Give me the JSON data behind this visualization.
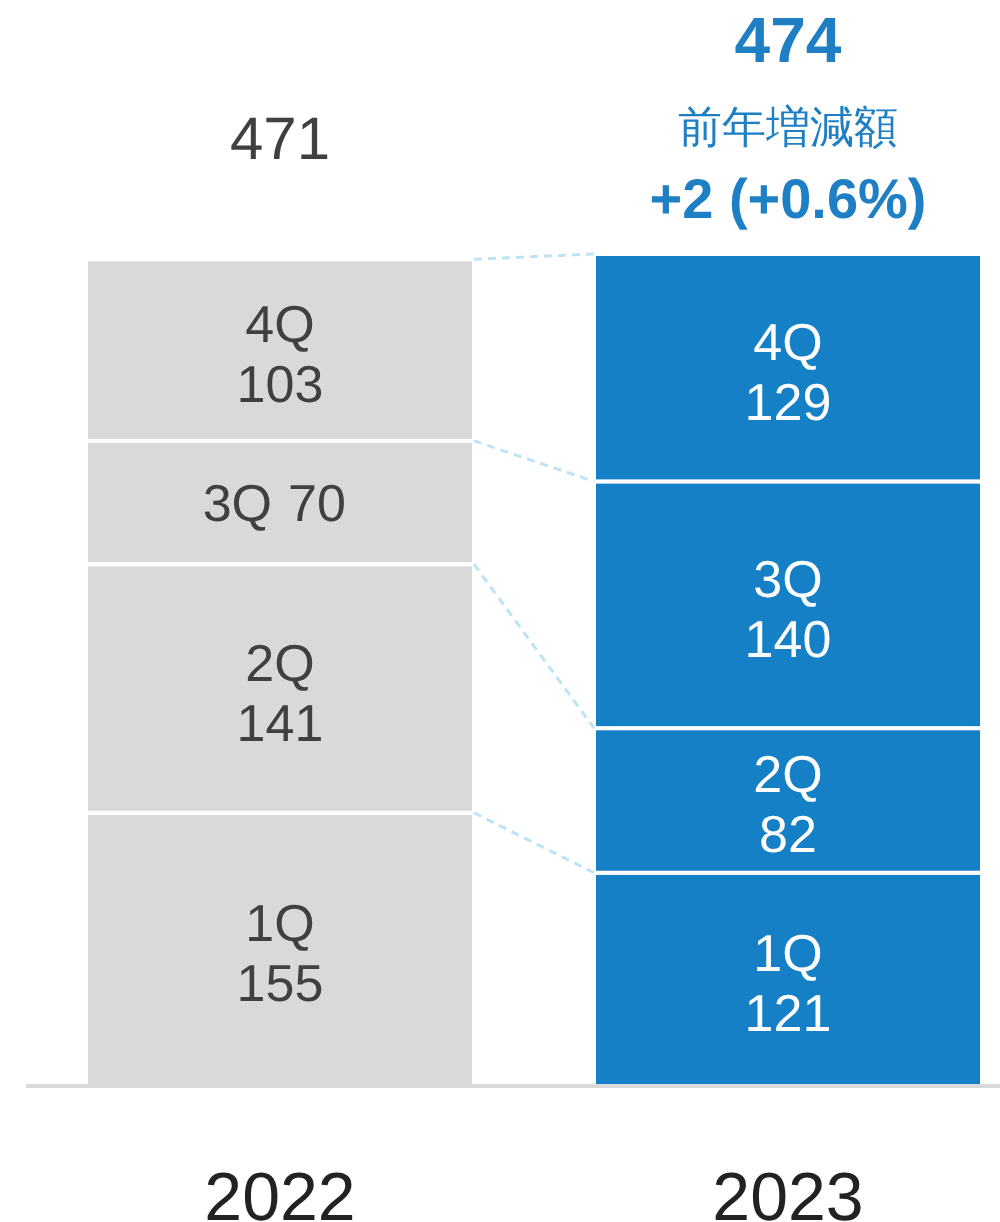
{
  "chart_data": {
    "type": "bar",
    "stacked": true,
    "data_labels": true,
    "categories": [
      "2022",
      "2023"
    ],
    "series": [
      {
        "name": "1Q",
        "values": [
          155,
          121
        ],
        "colors": [
          "#d9d9d9",
          "#1580c6"
        ]
      },
      {
        "name": "2Q",
        "values": [
          141,
          82
        ],
        "colors": [
          "#d9d9d9",
          "#1580c6"
        ]
      },
      {
        "name": "3Q",
        "values": [
          70,
          140
        ],
        "colors": [
          "#d9d9d9",
          "#1580c6"
        ]
      },
      {
        "name": "4Q",
        "values": [
          103,
          129
        ],
        "colors": [
          "#d9d9d9",
          "#1580c6"
        ]
      }
    ],
    "totals": [
      "471",
      "474"
    ],
    "annotations": [
      "前年増減額",
      "+2 (+0.6%)"
    ]
  }
}
